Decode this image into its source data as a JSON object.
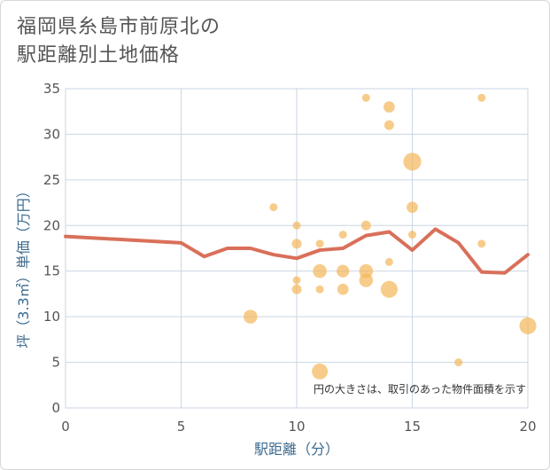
{
  "chart_data": {
    "type": "scatter",
    "title_lines": [
      "福岡県糸島市前原北の",
      "駅距離別土地価格"
    ],
    "xlabel": "駅距離（分）",
    "ylabel": "坪（3.3㎡）単価（万円）",
    "note": "円の大きさは、取引のあった物件面積を示す",
    "xlim": [
      0,
      20
    ],
    "ylim": [
      0,
      35
    ],
    "xticks": [
      0,
      5,
      10,
      15,
      20
    ],
    "yticks": [
      0,
      5,
      10,
      15,
      20,
      25,
      30,
      35
    ],
    "grid": true,
    "bubble_color": "#f3b75a",
    "line_color": "#d9705a",
    "bubbles": [
      {
        "x": 8,
        "y": 10,
        "size": 3
      },
      {
        "x": 9,
        "y": 22,
        "size": 1
      },
      {
        "x": 10,
        "y": 20,
        "size": 1
      },
      {
        "x": 10,
        "y": 18,
        "size": 1.5
      },
      {
        "x": 10,
        "y": 14,
        "size": 1
      },
      {
        "x": 10,
        "y": 13,
        "size": 1.5
      },
      {
        "x": 11,
        "y": 18,
        "size": 1
      },
      {
        "x": 11,
        "y": 15,
        "size": 3
      },
      {
        "x": 11,
        "y": 13,
        "size": 1
      },
      {
        "x": 11,
        "y": 4,
        "size": 4
      },
      {
        "x": 12,
        "y": 19,
        "size": 1
      },
      {
        "x": 12,
        "y": 15,
        "size": 2.5
      },
      {
        "x": 12,
        "y": 13,
        "size": 2
      },
      {
        "x": 13,
        "y": 34,
        "size": 1
      },
      {
        "x": 13,
        "y": 20,
        "size": 1.5
      },
      {
        "x": 13,
        "y": 15,
        "size": 3
      },
      {
        "x": 13,
        "y": 14,
        "size": 3
      },
      {
        "x": 14,
        "y": 33,
        "size": 2
      },
      {
        "x": 14,
        "y": 31,
        "size": 1.5
      },
      {
        "x": 14,
        "y": 16,
        "size": 1
      },
      {
        "x": 14,
        "y": 13,
        "size": 4.5
      },
      {
        "x": 15,
        "y": 27,
        "size": 5
      },
      {
        "x": 15,
        "y": 22,
        "size": 2
      },
      {
        "x": 15,
        "y": 19,
        "size": 1
      },
      {
        "x": 17,
        "y": 5,
        "size": 1
      },
      {
        "x": 18,
        "y": 34,
        "size": 1
      },
      {
        "x": 18,
        "y": 18,
        "size": 1
      },
      {
        "x": 20,
        "y": 9,
        "size": 4.5
      }
    ],
    "line": {
      "x": [
        0,
        5,
        6,
        7,
        8,
        9,
        10,
        11,
        12,
        13,
        14,
        15,
        16,
        17,
        18,
        19,
        20
      ],
      "y": [
        18.8,
        18.1,
        16.6,
        17.5,
        17.5,
        16.8,
        16.4,
        17.3,
        17.5,
        18.9,
        19.3,
        17.3,
        19.6,
        18.1,
        14.9,
        14.8,
        16.8
      ]
    }
  }
}
